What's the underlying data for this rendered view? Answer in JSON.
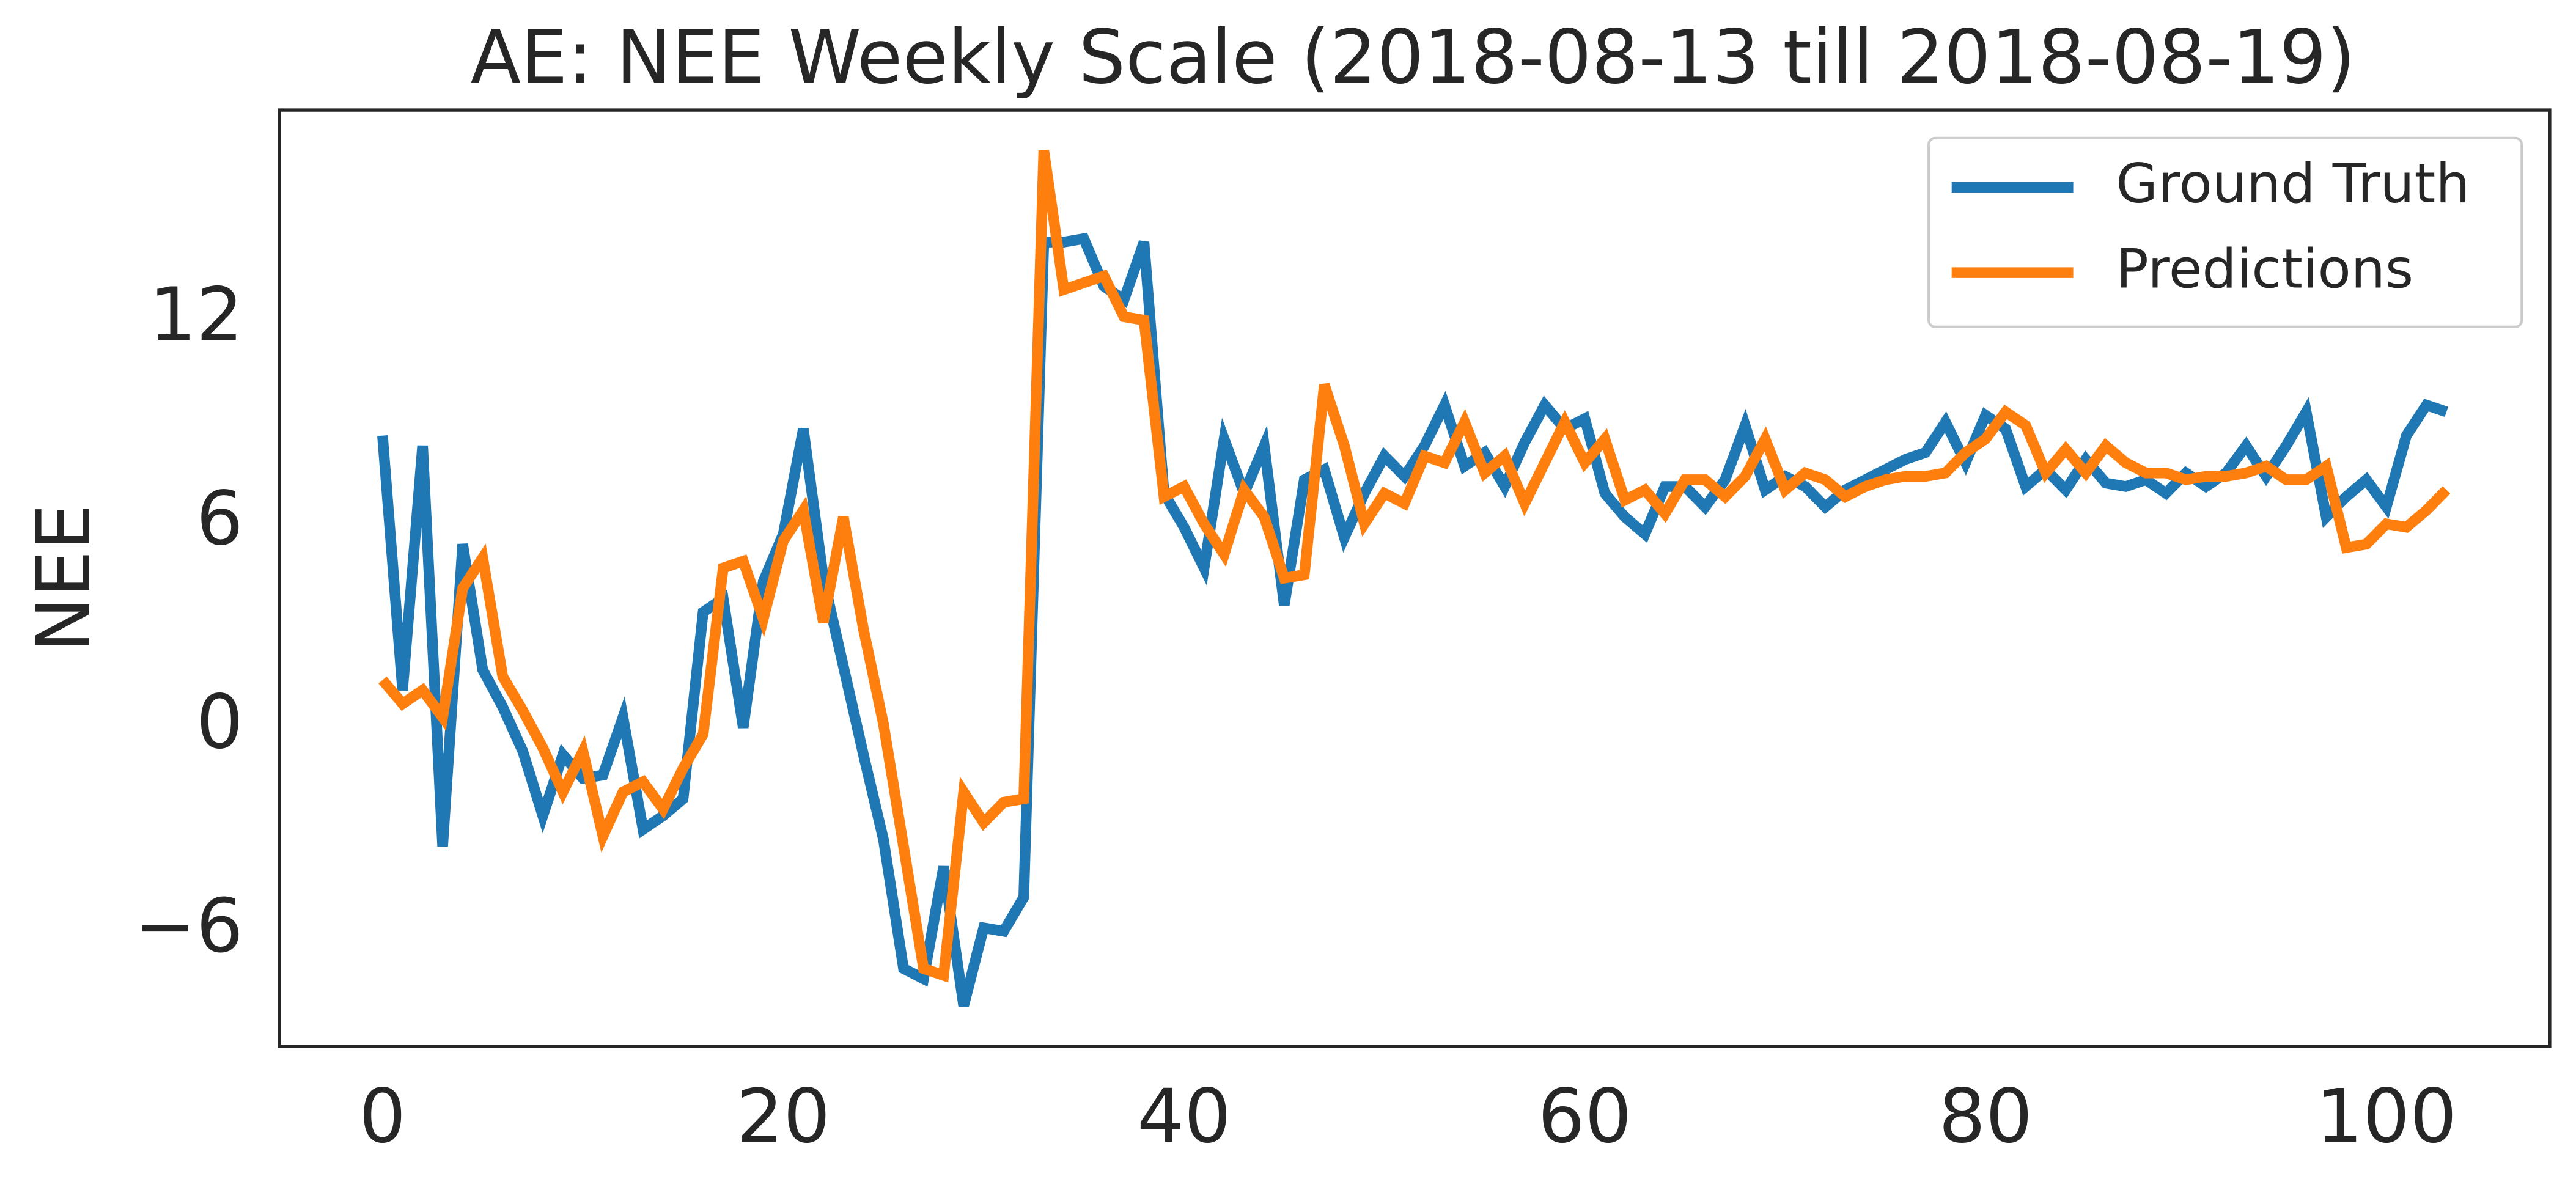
{
  "chart_data": {
    "type": "line",
    "title": "AE: NEE Weekly Scale (2018-08-13 till 2018-08-19)",
    "y_label": "NEE",
    "x": [
      0,
      1,
      2,
      3,
      4,
      5,
      6,
      7,
      8,
      9,
      10,
      11,
      12,
      13,
      14,
      15,
      16,
      17,
      18,
      19,
      20,
      21,
      22,
      23,
      24,
      25,
      26,
      27,
      28,
      29,
      30,
      31,
      32,
      33,
      34,
      35,
      36,
      37,
      38,
      39,
      40,
      41,
      42,
      43,
      44,
      45,
      46,
      47,
      48,
      49,
      50,
      51,
      52,
      53,
      54,
      55,
      56,
      57,
      58,
      59,
      60,
      61,
      62,
      63,
      64,
      65,
      66,
      67,
      68,
      69,
      70,
      71,
      72,
      73,
      74,
      75,
      76,
      77,
      78,
      79,
      80,
      81,
      82,
      83,
      84,
      85,
      86,
      87,
      88,
      89,
      90,
      91,
      92,
      93,
      94,
      95,
      96,
      97,
      98,
      99,
      100,
      101,
      102,
      103
    ],
    "series": [
      {
        "name": "Ground Truth",
        "color": "#1f77b4",
        "values": [
          8.6,
          1.1,
          8.3,
          -3.5,
          5.4,
          1.7,
          0.6,
          -0.7,
          -2.6,
          -0.8,
          -1.5,
          -1.4,
          0.3,
          -3.0,
          -2.6,
          -2.1,
          3.4,
          3.8,
          0,
          4.3,
          5.7,
          8.8,
          4.4,
          1.8,
          -0.8,
          -3.3,
          -7.1,
          -7.4,
          -4.1,
          -8.2,
          -5.9,
          -6.0,
          -5.0,
          14.3,
          14.3,
          14.4,
          13.0,
          12.6,
          14.3,
          6.9,
          5.9,
          4.7,
          8.5,
          6.9,
          8.3,
          3.6,
          7.3,
          7.6,
          5.6,
          6.9,
          8.0,
          7.4,
          8.3,
          9.5,
          7.7,
          8.1,
          7.1,
          8.4,
          9.5,
          8.8,
          9.1,
          6.9,
          6.2,
          5.7,
          7.1,
          7.1,
          6.5,
          7.3,
          8.9,
          7.0,
          7.4,
          7.1,
          6.5,
          7.0,
          7.3,
          7.6,
          7.9,
          8.1,
          9.0,
          7.8,
          9.2,
          8.8,
          7.1,
          7.6,
          7.0,
          7.9,
          7.2,
          7.1,
          7.3,
          6.9,
          7.5,
          7.1,
          7.5,
          8.3,
          7.4,
          8.3,
          9.3,
          6.2,
          6.8,
          7.3,
          6.5,
          8.6,
          9.5,
          9.3
        ]
      },
      {
        "name": "Predictions",
        "color": "#ff7f0e",
        "values": [
          1.4,
          0.7,
          1.1,
          0.3,
          4.1,
          5.0,
          1.5,
          0.5,
          -0.6,
          -1.9,
          -0.7,
          -3.2,
          -1.9,
          -1.6,
          -2.4,
          -1.2,
          -0.2,
          4.7,
          4.9,
          3.2,
          5.5,
          6.4,
          3.1,
          6.2,
          2.9,
          0.1,
          -3.5,
          -7.1,
          -7.3,
          -1.9,
          -2.8,
          -2.2,
          -2.1,
          17.0,
          12.9,
          13.1,
          13.3,
          12.1,
          12.0,
          6.8,
          7.1,
          6.0,
          5.1,
          7.0,
          6.2,
          4.4,
          4.5,
          10.1,
          8.3,
          6.0,
          6.9,
          6.6,
          8.0,
          7.8,
          9.0,
          7.5,
          8.0,
          6.6,
          7.8,
          9.0,
          7.8,
          8.5,
          6.7,
          7.0,
          6.3,
          7.3,
          7.3,
          6.8,
          7.4,
          8.5,
          7.0,
          7.5,
          7.3,
          6.8,
          7.1,
          7.3,
          7.4,
          7.4,
          7.5,
          8.1,
          8.5,
          9.3,
          8.9,
          7.5,
          8.2,
          7.5,
          8.3,
          7.8,
          7.5,
          7.5,
          7.3,
          7.4,
          7.4,
          7.5,
          7.7,
          7.3,
          7.3,
          7.7,
          5.3,
          5.4,
          6.0,
          5.9,
          6.4,
          7.0
        ]
      }
    ],
    "xlim": [
      -5.15,
      108.15
    ],
    "ylim": [
      -9.39,
      18.19
    ],
    "xticks": [
      0,
      20,
      40,
      60,
      80,
      100
    ],
    "yticks": [
      {
        "value": -6,
        "label": "−6"
      },
      0,
      6,
      12
    ],
    "legend": "upper right",
    "grid": false
  }
}
